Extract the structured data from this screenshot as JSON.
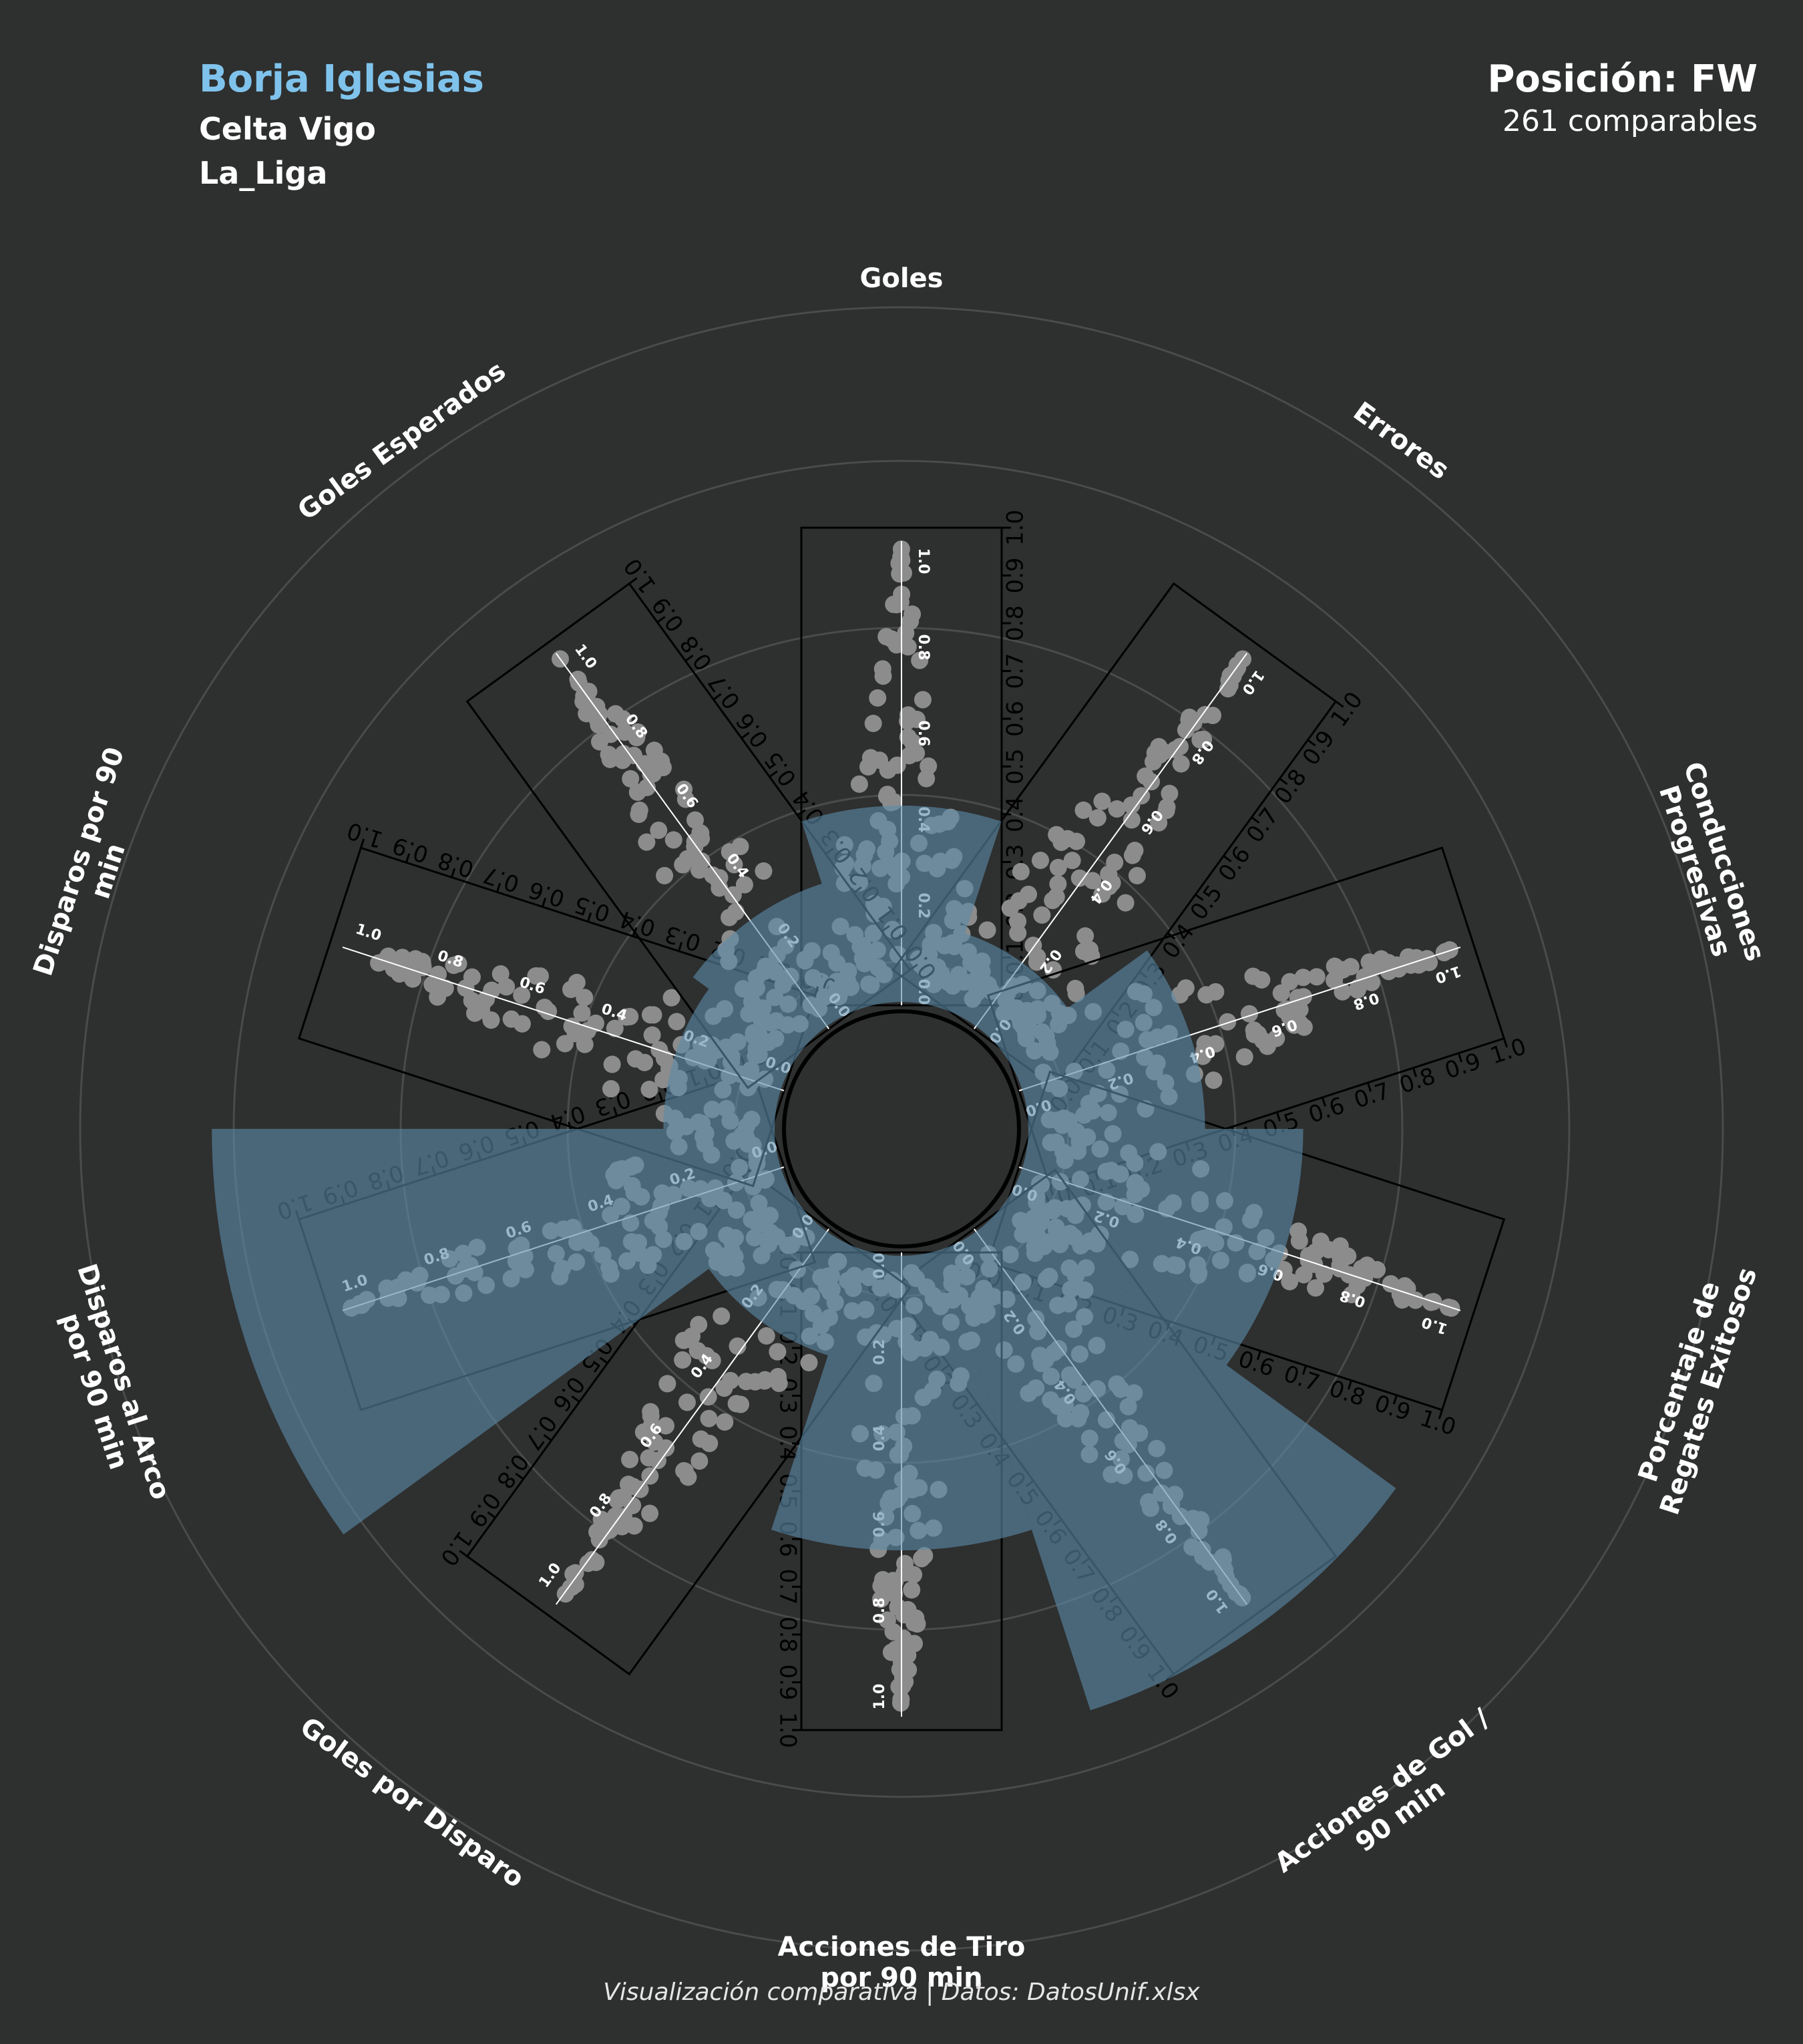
{
  "header": {
    "player": "Borja Iglesias",
    "team": "Celta Vigo",
    "league": "La_Liga",
    "position_label": "Posición: FW",
    "comparables_label": "261 comparables"
  },
  "footer": "Visualización comparativa | Datos: DatosUnif.xlsx",
  "colors": {
    "background": "#2e2f2f",
    "highlight": "#7fc3ec",
    "bar": "#5a8aa8",
    "dots": "#8c8c8c",
    "ring": "#4a4b4b"
  },
  "chart_data": {
    "type": "radial_bar_beeswarm",
    "axis_ticks": [
      0.0,
      0.1,
      0.2,
      0.3,
      0.4,
      0.5,
      0.6,
      0.7,
      0.8,
      0.9,
      1.0
    ],
    "inner_ticks": [
      0.0,
      0.2,
      0.4,
      0.6,
      0.8,
      1.0
    ],
    "inner_tick_labels": [
      "0.0",
      "0.2",
      "0.4",
      "0.6",
      "0.8",
      "1.0"
    ],
    "tick_labels": [
      "0.0",
      "0.1",
      "0.2",
      "0.3",
      "0.4",
      "0.5",
      "0.6",
      "0.7",
      "0.8",
      "0.9",
      "1.0"
    ],
    "player_value_scale": [
      0,
      1
    ],
    "categories": [
      {
        "name": "Goles",
        "player_value": 0.3
      },
      {
        "name": "Errores",
        "player_value": 0.12
      },
      {
        "name": "Conducciones\nProgresivas",
        "player_value": 0.27
      },
      {
        "name": "Porcentaje de\nRegates Exitosos",
        "player_value": 0.42
      },
      {
        "name": "Acciones de Gol /\n90 min",
        "player_value": 0.74
      },
      {
        "name": "Acciones de Tiro\npor 90 min",
        "player_value": 0.45
      },
      {
        "name": "Goles por Disparo",
        "player_value": 0.17
      },
      {
        "name": "Disparos al Arco\npor 90 min",
        "player_value": 0.86
      },
      {
        "name": "Disparos por 90\nmin",
        "player_value": 0.17
      },
      {
        "name": "Goles Esperados",
        "player_value": 0.2
      }
    ]
  }
}
